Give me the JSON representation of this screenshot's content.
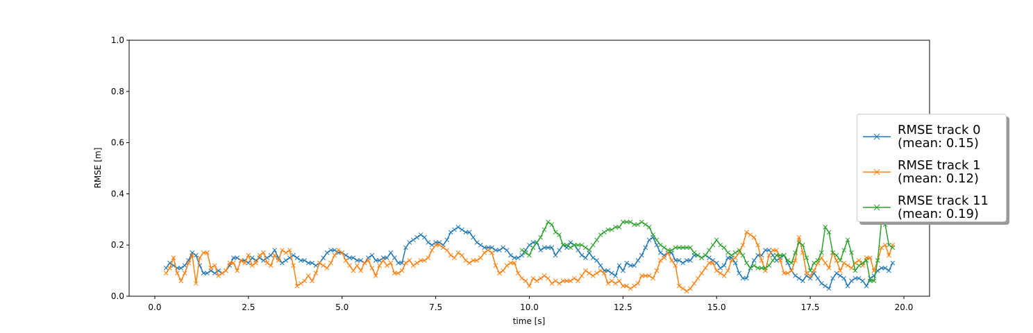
{
  "chart_data": {
    "type": "line",
    "xlabel": "time [s]",
    "ylabel": "RMSE [m]",
    "xlim": [
      -0.685,
      20.685
    ],
    "ylim": [
      0,
      1
    ],
    "xticks": [
      {
        "value": 0,
        "label": "0.0"
      },
      2.5,
      {
        "value": 5,
        "label": "5.0"
      },
      7.5,
      {
        "value": 10,
        "label": "10.0"
      },
      12.5,
      {
        "value": 15,
        "label": "15.0"
      },
      17.5,
      {
        "value": 20,
        "label": "20.0"
      }
    ],
    "yticks": [
      {
        "value": 0,
        "label": "0.0"
      },
      0.2,
      0.4,
      0.6,
      0.8,
      {
        "value": 1,
        "label": "1.0"
      }
    ],
    "marker": "x",
    "series": [
      {
        "name": "RMSE track 0\n(mean: 0.15)",
        "color": "#1f77b4",
        "x": [
          0.3,
          0.4,
          0.5,
          0.6,
          0.7,
          0.8,
          0.9,
          1.0,
          1.1,
          1.2,
          1.3,
          1.4,
          1.5,
          1.6,
          1.7,
          1.8,
          1.9,
          2.0,
          2.1,
          2.2,
          2.3,
          2.4,
          2.5,
          2.6,
          2.7,
          2.8,
          2.9,
          3.0,
          3.1,
          3.2,
          3.3,
          3.4,
          3.5,
          3.6,
          3.7,
          3.8,
          3.9,
          4.0,
          4.1,
          4.2,
          4.3,
          4.4,
          4.5,
          4.6,
          4.7,
          4.8,
          4.9,
          5.0,
          5.1,
          5.2,
          5.3,
          5.4,
          5.5,
          5.6,
          5.7,
          5.8,
          5.9,
          6.0,
          6.1,
          6.2,
          6.3,
          6.4,
          6.5,
          6.6,
          6.7,
          6.8,
          6.9,
          7.0,
          7.1,
          7.2,
          7.3,
          7.4,
          7.5,
          7.6,
          7.7,
          7.8,
          7.9,
          8.0,
          8.1,
          8.2,
          8.3,
          8.4,
          8.5,
          8.6,
          8.7,
          8.8,
          8.9,
          9.0,
          9.1,
          9.2,
          9.3,
          9.4,
          9.5,
          9.6,
          9.7,
          9.8,
          9.9,
          10.0,
          10.1,
          10.2,
          10.3,
          10.4,
          10.5,
          10.6,
          10.7,
          10.8,
          10.9,
          11.0,
          11.1,
          11.2,
          11.3,
          11.4,
          11.5,
          11.6,
          11.7,
          11.8,
          11.9,
          12.0,
          12.1,
          12.2,
          12.3,
          12.4,
          12.5,
          12.6,
          12.7,
          12.8,
          12.9,
          13.0,
          13.1,
          13.2,
          13.3,
          13.4,
          13.5,
          13.6,
          13.7,
          13.8,
          13.9,
          14.0,
          14.1,
          14.2,
          14.3,
          14.4,
          14.5,
          14.6,
          14.7,
          14.8,
          14.9,
          15.0,
          15.1,
          15.2,
          15.3,
          15.4,
          15.5,
          15.6,
          15.7,
          15.8,
          15.9,
          16.0,
          16.1,
          16.2,
          16.3,
          16.4,
          16.5,
          16.6,
          16.7,
          16.8,
          16.9,
          17.0,
          17.1,
          17.2,
          17.3,
          17.4,
          17.5,
          17.6,
          17.7,
          17.8,
          17.9,
          18.0,
          18.1,
          18.2,
          18.3,
          18.4,
          18.5,
          18.6,
          18.7,
          18.8,
          18.9,
          19.0,
          19.1,
          19.2,
          19.3,
          19.4,
          19.5,
          19.6,
          19.7
        ],
        "values": [
          0.11,
          0.13,
          0.12,
          0.11,
          0.11,
          0.12,
          0.14,
          0.17,
          0.16,
          0.12,
          0.09,
          0.09,
          0.1,
          0.09,
          0.1,
          0.09,
          0.1,
          0.12,
          0.15,
          0.15,
          0.14,
          0.14,
          0.13,
          0.15,
          0.14,
          0.15,
          0.14,
          0.15,
          0.16,
          0.18,
          0.15,
          0.13,
          0.14,
          0.15,
          0.16,
          0.15,
          0.14,
          0.14,
          0.13,
          0.13,
          0.12,
          0.13,
          0.15,
          0.17,
          0.18,
          0.18,
          0.17,
          0.17,
          0.16,
          0.15,
          0.15,
          0.14,
          0.14,
          0.13,
          0.15,
          0.16,
          0.14,
          0.14,
          0.15,
          0.15,
          0.17,
          0.15,
          0.13,
          0.13,
          0.19,
          0.21,
          0.22,
          0.23,
          0.24,
          0.23,
          0.21,
          0.2,
          0.21,
          0.21,
          0.2,
          0.22,
          0.25,
          0.26,
          0.27,
          0.26,
          0.25,
          0.25,
          0.23,
          0.21,
          0.2,
          0.19,
          0.19,
          0.19,
          0.18,
          0.18,
          0.19,
          0.18,
          0.16,
          0.15,
          0.15,
          0.16,
          0.18,
          0.2,
          0.21,
          0.21,
          0.18,
          0.19,
          0.19,
          0.19,
          0.16,
          0.18,
          0.2,
          0.19,
          0.21,
          0.2,
          0.18,
          0.16,
          0.15,
          0.17,
          0.15,
          0.14,
          0.12,
          0.1,
          0.1,
          0.09,
          0.08,
          0.12,
          0.1,
          0.13,
          0.12,
          0.12,
          0.14,
          0.16,
          0.19,
          0.22,
          0.23,
          0.2,
          0.17,
          0.16,
          0.17,
          0.17,
          0.14,
          0.14,
          0.13,
          0.14,
          0.14,
          0.16,
          0.16,
          0.15,
          0.16,
          0.15,
          0.14,
          0.13,
          0.11,
          0.12,
          0.15,
          0.15,
          0.13,
          0.09,
          0.07,
          0.07,
          0.11,
          0.14,
          0.16,
          0.16,
          0.18,
          0.18,
          0.16,
          0.14,
          0.15,
          0.16,
          0.13,
          0.1,
          0.08,
          0.07,
          0.06,
          0.08,
          0.07,
          0.09,
          0.07,
          0.05,
          0.04,
          0.03,
          0.07,
          0.09,
          0.08,
          0.07,
          0.04,
          0.06,
          0.07,
          0.07,
          0.06,
          0.04,
          0.07,
          0.08,
          0.1,
          0.11,
          0.11,
          0.1,
          0.13
        ]
      },
      {
        "name": "RMSE track 1\n(mean: 0.12)",
        "color": "#ff7f0e",
        "x": [
          0.3,
          0.4,
          0.5,
          0.6,
          0.7,
          0.8,
          0.9,
          1.0,
          1.1,
          1.2,
          1.3,
          1.4,
          1.5,
          1.6,
          1.7,
          1.8,
          1.9,
          2.0,
          2.1,
          2.2,
          2.3,
          2.4,
          2.5,
          2.6,
          2.7,
          2.8,
          2.9,
          3.0,
          3.1,
          3.2,
          3.3,
          3.4,
          3.5,
          3.6,
          3.7,
          3.8,
          3.9,
          4.0,
          4.1,
          4.2,
          4.3,
          4.4,
          4.5,
          4.6,
          4.7,
          4.8,
          4.9,
          5.0,
          5.1,
          5.2,
          5.3,
          5.4,
          5.5,
          5.6,
          5.7,
          5.8,
          5.9,
          6.0,
          6.1,
          6.2,
          6.3,
          6.4,
          6.5,
          6.6,
          6.7,
          6.8,
          6.9,
          7.0,
          7.1,
          7.2,
          7.3,
          7.4,
          7.5,
          7.6,
          7.7,
          7.8,
          7.9,
          8.0,
          8.1,
          8.2,
          8.3,
          8.4,
          8.5,
          8.6,
          8.7,
          8.8,
          8.9,
          9.0,
          9.1,
          9.2,
          9.3,
          9.4,
          9.5,
          9.6,
          9.7,
          9.8,
          9.9,
          10.0,
          10.1,
          10.2,
          10.3,
          10.4,
          10.5,
          10.6,
          10.7,
          10.8,
          10.9,
          11.0,
          11.1,
          11.2,
          11.3,
          11.4,
          11.5,
          11.6,
          11.7,
          11.8,
          11.9,
          12.0,
          12.1,
          12.2,
          12.3,
          12.4,
          12.5,
          12.6,
          12.7,
          12.8,
          12.9,
          13.0,
          13.1,
          13.2,
          13.3,
          13.4,
          13.5,
          13.6,
          13.7,
          13.8,
          13.9,
          14.0,
          14.1,
          14.2,
          14.3,
          14.4,
          14.5,
          14.6,
          14.7,
          14.8,
          14.9,
          15.0,
          15.1,
          15.2,
          15.3,
          15.4,
          15.5,
          15.6,
          15.7,
          15.8,
          15.9,
          16.0,
          16.1,
          16.2,
          16.3,
          16.4,
          16.5,
          16.6,
          16.7,
          16.8,
          16.9,
          17.0,
          17.1,
          17.2,
          17.3,
          17.4,
          17.5,
          17.6,
          17.7,
          17.8,
          17.9,
          18.0,
          18.1,
          18.2,
          18.3,
          18.4,
          18.5,
          18.6,
          18.7,
          18.8,
          18.9,
          19.0,
          19.1,
          19.2,
          19.3,
          19.4,
          19.5,
          19.6,
          19.7
        ],
        "values": [
          0.09,
          0.11,
          0.15,
          0.09,
          0.06,
          0.09,
          0.13,
          0.16,
          0.05,
          0.15,
          0.17,
          0.17,
          0.11,
          0.12,
          0.08,
          0.09,
          0.1,
          0.13,
          0.13,
          0.1,
          0.14,
          0.13,
          0.16,
          0.12,
          0.13,
          0.16,
          0.17,
          0.13,
          0.12,
          0.16,
          0.14,
          0.18,
          0.17,
          0.18,
          0.12,
          0.04,
          0.05,
          0.06,
          0.08,
          0.06,
          0.09,
          0.13,
          0.12,
          0.11,
          0.13,
          0.16,
          0.18,
          0.17,
          0.14,
          0.12,
          0.1,
          0.12,
          0.1,
          0.13,
          0.14,
          0.11,
          0.08,
          0.12,
          0.14,
          0.12,
          0.13,
          0.09,
          0.09,
          0.1,
          0.13,
          0.14,
          0.12,
          0.13,
          0.14,
          0.14,
          0.15,
          0.18,
          0.2,
          0.2,
          0.19,
          0.18,
          0.16,
          0.15,
          0.17,
          0.16,
          0.14,
          0.13,
          0.14,
          0.14,
          0.15,
          0.17,
          0.18,
          0.17,
          0.12,
          0.09,
          0.1,
          0.12,
          0.13,
          0.13,
          0.09,
          0.07,
          0.06,
          0.04,
          0.07,
          0.06,
          0.07,
          0.08,
          0.07,
          0.05,
          0.06,
          0.05,
          0.06,
          0.06,
          0.06,
          0.07,
          0.06,
          0.08,
          0.1,
          0.09,
          0.08,
          0.09,
          0.1,
          0.09,
          0.05,
          0.06,
          0.05,
          0.06,
          0.04,
          0.04,
          0.03,
          0.04,
          0.05,
          0.08,
          0.08,
          0.08,
          0.07,
          0.1,
          0.14,
          0.15,
          0.17,
          0.14,
          0.12,
          0.04,
          0.03,
          0.02,
          0.03,
          0.05,
          0.07,
          0.09,
          0.11,
          0.13,
          0.13,
          0.1,
          0.09,
          0.08,
          0.1,
          0.14,
          0.15,
          0.17,
          0.2,
          0.25,
          0.24,
          0.23,
          0.2,
          0.14,
          0.1,
          0.16,
          0.18,
          0.18,
          0.14,
          0.09,
          0.09,
          0.1,
          0.14,
          0.23,
          0.17,
          0.09,
          0.08,
          0.1,
          0.13,
          0.15,
          0.13,
          0.11,
          0.17,
          0.14,
          0.1,
          0.13,
          0.12,
          0.11,
          0.13,
          0.14,
          0.12,
          0.15,
          0.15,
          0.1,
          0.14,
          0.19,
          0.2,
          0.16,
          0.2
        ]
      },
      {
        "name": "RMSE track 11\n(mean: 0.19)",
        "color": "#2ca02c",
        "x": [
          9.8,
          9.9,
          10.0,
          10.1,
          10.2,
          10.3,
          10.4,
          10.5,
          10.6,
          10.7,
          10.8,
          10.9,
          11.0,
          11.1,
          11.2,
          11.3,
          11.4,
          11.5,
          11.6,
          11.7,
          11.8,
          11.9,
          12.0,
          12.1,
          12.2,
          12.3,
          12.4,
          12.5,
          12.6,
          12.7,
          12.8,
          12.9,
          13.0,
          13.1,
          13.2,
          13.3,
          13.4,
          13.5,
          13.6,
          13.7,
          13.8,
          13.9,
          14.0,
          14.1,
          14.2,
          14.3,
          14.4,
          14.5,
          14.6,
          14.7,
          14.8,
          14.9,
          15.0,
          15.1,
          15.2,
          15.3,
          15.4,
          15.5,
          15.6,
          15.7,
          15.8,
          15.9,
          16.0,
          16.1,
          16.2,
          16.3,
          16.4,
          16.5,
          16.6,
          16.7,
          16.8,
          16.9,
          17.0,
          17.1,
          17.2,
          17.3,
          17.4,
          17.5,
          17.6,
          17.7,
          17.8,
          17.9,
          18.0,
          18.1,
          18.2,
          18.3,
          18.4,
          18.5,
          18.6,
          18.7,
          18.8,
          18.9,
          19.0,
          19.1,
          19.2,
          19.3,
          19.4,
          19.5,
          19.6,
          19.7
        ],
        "values": [
          0.18,
          0.17,
          0.16,
          0.19,
          0.21,
          0.23,
          0.26,
          0.29,
          0.28,
          0.25,
          0.24,
          0.2,
          0.2,
          0.19,
          0.2,
          0.2,
          0.2,
          0.19,
          0.18,
          0.2,
          0.22,
          0.24,
          0.25,
          0.26,
          0.26,
          0.27,
          0.27,
          0.29,
          0.29,
          0.29,
          0.28,
          0.28,
          0.29,
          0.28,
          0.27,
          0.24,
          0.22,
          0.2,
          0.19,
          0.18,
          0.18,
          0.19,
          0.19,
          0.19,
          0.19,
          0.19,
          0.17,
          0.16,
          0.15,
          0.16,
          0.18,
          0.2,
          0.22,
          0.2,
          0.19,
          0.17,
          0.16,
          0.17,
          0.18,
          0.16,
          0.13,
          0.11,
          0.12,
          0.11,
          0.11,
          0.11,
          0.12,
          0.14,
          0.16,
          0.16,
          0.16,
          0.14,
          0.13,
          0.17,
          0.21,
          0.2,
          0.15,
          0.1,
          0.13,
          0.14,
          0.17,
          0.27,
          0.25,
          0.17,
          0.16,
          0.14,
          0.18,
          0.22,
          0.17,
          0.1,
          0.12,
          0.13,
          0.14,
          0.06,
          0.06,
          0.14,
          0.29,
          0.28,
          0.2,
          0.19
        ]
      }
    ]
  }
}
